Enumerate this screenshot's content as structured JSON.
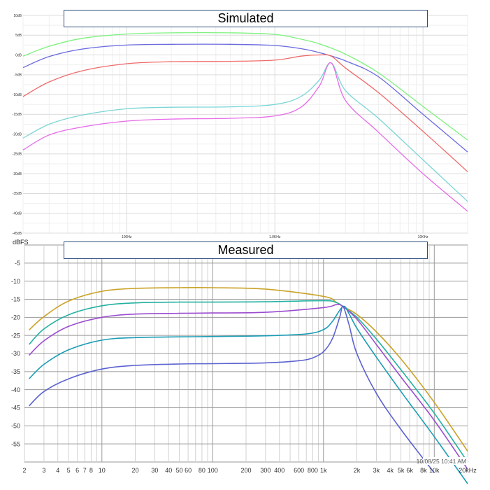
{
  "chart_data": [
    {
      "type": "line",
      "title": "Simulated",
      "x_scale": "log",
      "xlim": [
        20,
        20000
      ],
      "ylim": [
        -45,
        10
      ],
      "grid": true,
      "y_ticks": [
        {
          "value": 10,
          "label": "10dB"
        },
        {
          "value": 5,
          "label": "5dB"
        },
        {
          "value": 0,
          "label": "0dB"
        },
        {
          "value": -5,
          "label": "-5dB"
        },
        {
          "value": -10,
          "label": "-10dB"
        },
        {
          "value": -15,
          "label": "-15dB"
        },
        {
          "value": -20,
          "label": "-20dB"
        },
        {
          "value": -25,
          "label": "-25dB"
        },
        {
          "value": -30,
          "label": "-30dB"
        },
        {
          "value": -35,
          "label": "-35dB"
        },
        {
          "value": -40,
          "label": "-40dB"
        },
        {
          "value": -45,
          "label": "-45dB"
        }
      ],
      "x_ticks": [
        {
          "value": 100,
          "label": "100Hz"
        },
        {
          "value": 1000,
          "label": "1.0KHz"
        },
        {
          "value": 10000,
          "label": "10KHz"
        }
      ],
      "series": [
        {
          "color": "#7cf27c",
          "x": [
            20,
            30,
            50,
            100,
            200,
            500,
            1000,
            1500,
            2000,
            3000,
            5000,
            10000,
            20000
          ],
          "y": [
            -0.3,
            2.2,
            4.2,
            5.3,
            5.6,
            5.6,
            5.2,
            4.0,
            2.8,
            0.2,
            -4.5,
            -13,
            -21.5
          ]
        },
        {
          "color": "#6b6ae0",
          "x": [
            20,
            30,
            50,
            100,
            200,
            500,
            1000,
            1500,
            2000,
            3000,
            5000,
            10000,
            20000
          ],
          "y": [
            -3.2,
            -0.4,
            1.5,
            2.5,
            2.7,
            2.7,
            2.4,
            1.6,
            0.6,
            -1.5,
            -5.5,
            -15,
            -24.5
          ]
        },
        {
          "color": "#ef6a6a",
          "x": [
            20,
            30,
            50,
            100,
            200,
            500,
            1000,
            1500,
            2000,
            2400,
            3000,
            5000,
            10000,
            20000
          ],
          "y": [
            -10.5,
            -6.8,
            -4.0,
            -2.2,
            -1.7,
            -1.6,
            -1.3,
            -0.3,
            0.0,
            -0.3,
            -3.3,
            -9.5,
            -19.3,
            -29.5
          ]
        },
        {
          "color": "#7ad5d5",
          "x": [
            20,
            30,
            50,
            100,
            200,
            500,
            1000,
            1500,
            2000,
            2400,
            3000,
            5000,
            10000,
            20000
          ],
          "y": [
            -21,
            -17.5,
            -15.2,
            -13.6,
            -13.2,
            -13.1,
            -12.5,
            -10.5,
            -6.3,
            -2.0,
            -9.0,
            -16.0,
            -26.5,
            -37
          ]
        },
        {
          "color": "#e76ae7",
          "x": [
            20,
            30,
            50,
            100,
            200,
            500,
            1000,
            1500,
            2000,
            2400,
            3000,
            5000,
            10000,
            20000
          ],
          "y": [
            -24,
            -20.2,
            -18.2,
            -16.7,
            -16.2,
            -16.0,
            -15.4,
            -13.2,
            -7.8,
            -2.0,
            -11.5,
            -19.5,
            -30,
            -39.5
          ]
        }
      ]
    },
    {
      "type": "line",
      "title": "Measured",
      "ylabel": "dBFS",
      "x_scale": "log",
      "xlim": [
        2,
        20000
      ],
      "ylim": [
        -60,
        0
      ],
      "grid": true,
      "y_ticks": [
        {
          "value": -5,
          "label": "-5"
        },
        {
          "value": -10,
          "label": "-10"
        },
        {
          "value": -15,
          "label": "-15"
        },
        {
          "value": -20,
          "label": "-20"
        },
        {
          "value": -25,
          "label": "-25"
        },
        {
          "value": -30,
          "label": "-30"
        },
        {
          "value": -35,
          "label": "-35"
        },
        {
          "value": -40,
          "label": "-40"
        },
        {
          "value": -45,
          "label": "-45"
        },
        {
          "value": -50,
          "label": "-50"
        },
        {
          "value": -55,
          "label": "-55"
        }
      ],
      "x_ticks": [
        {
          "value": 2,
          "label": "2"
        },
        {
          "value": 3,
          "label": "3"
        },
        {
          "value": 4,
          "label": "4"
        },
        {
          "value": 5,
          "label": "5"
        },
        {
          "value": 6,
          "label": "6"
        },
        {
          "value": 7,
          "label": "7"
        },
        {
          "value": 8,
          "label": "8"
        },
        {
          "value": 10,
          "label": "10"
        },
        {
          "value": 20,
          "label": "20"
        },
        {
          "value": 30,
          "label": "30"
        },
        {
          "value": 40,
          "label": "40"
        },
        {
          "value": 50,
          "label": "50"
        },
        {
          "value": 60,
          "label": "60"
        },
        {
          "value": 80,
          "label": "80"
        },
        {
          "value": 100,
          "label": "100"
        },
        {
          "value": 200,
          "label": "200"
        },
        {
          "value": 300,
          "label": "300"
        },
        {
          "value": 400,
          "label": "400"
        },
        {
          "value": 600,
          "label": "600"
        },
        {
          "value": 800,
          "label": "800"
        },
        {
          "value": 1000,
          "label": "1k"
        },
        {
          "value": 2000,
          "label": "2k"
        },
        {
          "value": 3000,
          "label": "3k"
        },
        {
          "value": 4000,
          "label": "4k"
        },
        {
          "value": 5000,
          "label": "5k"
        },
        {
          "value": 6000,
          "label": "6k"
        },
        {
          "value": 8000,
          "label": "8k"
        },
        {
          "value": 10000,
          "label": "10k"
        },
        {
          "value": 20000,
          "label": "20kHz"
        }
      ],
      "timestamp": "10/08/25 10:41 AM",
      "series": [
        {
          "color": "#c9a227",
          "x": [
            2.2,
            3,
            5,
            10,
            20,
            50,
            100,
            300,
            1000,
            1300,
            1500,
            2000,
            3000,
            5000,
            10000,
            20000
          ],
          "y": [
            -23.5,
            -19.8,
            -15.5,
            -12.8,
            -12.0,
            -11.8,
            -11.8,
            -12.2,
            -14.2,
            -15.8,
            -17.0,
            -19.2,
            -24.0,
            -31.5,
            -43.5,
            -57.0
          ]
        },
        {
          "color": "#23b1a1",
          "x": [
            2.2,
            3,
            5,
            10,
            20,
            50,
            100,
            300,
            1000,
            1300,
            1500,
            2000,
            3000,
            5000,
            10000,
            20000
          ],
          "y": [
            -27.5,
            -23.2,
            -19.3,
            -16.8,
            -16.0,
            -15.8,
            -15.8,
            -15.7,
            -15.4,
            -15.9,
            -17.0,
            -20.0,
            -26.0,
            -34.5,
            -46.5,
            -60.0
          ]
        },
        {
          "color": "#9b4ccf",
          "x": [
            2.2,
            3,
            5,
            10,
            20,
            50,
            100,
            300,
            1000,
            1300,
            1500,
            2000,
            3000,
            5000,
            10000,
            20000
          ],
          "y": [
            -30.5,
            -26.5,
            -22.5,
            -20.0,
            -19.1,
            -18.9,
            -18.8,
            -18.6,
            -17.3,
            -16.5,
            -17.0,
            -20.5,
            -27.5,
            -36.5,
            -48.5,
            -62.0
          ]
        },
        {
          "color": "#1b9cb5",
          "x": [
            2.2,
            3,
            5,
            10,
            20,
            50,
            100,
            300,
            700,
            1000,
            1200,
            1500,
            1700,
            2000,
            3000,
            5000,
            10000,
            20000
          ],
          "y": [
            -37.0,
            -33.0,
            -29.0,
            -26.3,
            -25.6,
            -25.4,
            -25.3,
            -25.1,
            -24.6,
            -23.4,
            -21.2,
            -17.0,
            -19.0,
            -23.0,
            -31.0,
            -40.5,
            -53.0,
            -66.0
          ]
        },
        {
          "color": "#5c63cf",
          "x": [
            2.2,
            3,
            5,
            10,
            20,
            50,
            100,
            300,
            600,
            800,
            1000,
            1200,
            1400,
            1500,
            1700,
            2000,
            3000,
            5000,
            10000
          ],
          "y": [
            -44.5,
            -40.5,
            -37.0,
            -34.3,
            -33.3,
            -32.9,
            -32.8,
            -32.6,
            -32.0,
            -31.2,
            -29.5,
            -26.0,
            -20.0,
            -17.0,
            -22.0,
            -30.0,
            -41.0,
            -51.0,
            -63.0
          ]
        }
      ]
    }
  ]
}
